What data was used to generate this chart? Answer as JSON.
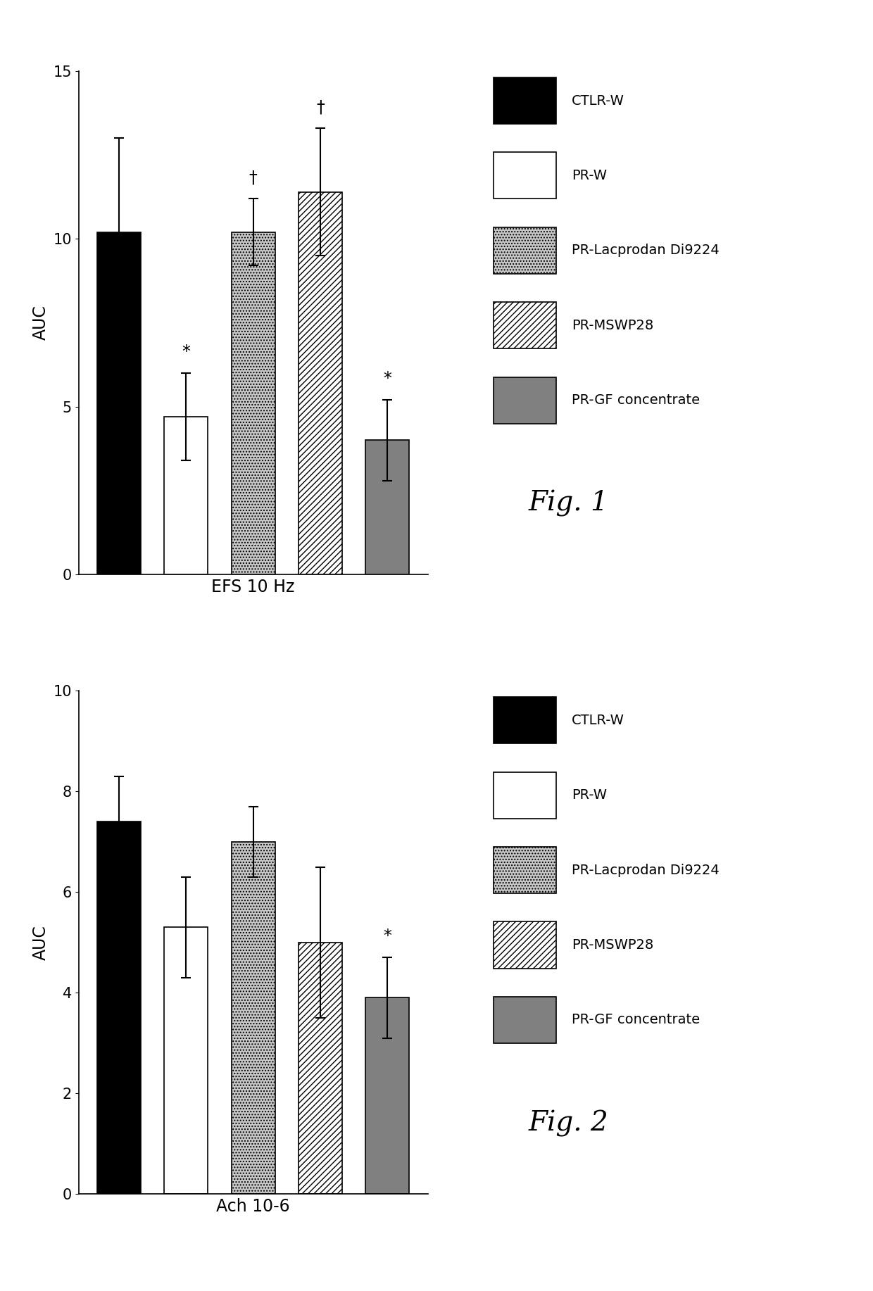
{
  "fig1": {
    "xlabel": "EFS 10 Hz",
    "ylabel": "AUC",
    "ylim": [
      0,
      15
    ],
    "yticks": [
      0,
      5,
      10,
      15
    ],
    "bars": [
      {
        "label": "CTLR-W",
        "value": 10.2,
        "error": 2.8,
        "color": "#000000",
        "hatch": null,
        "annotation": null
      },
      {
        "label": "PR-W",
        "value": 4.7,
        "error": 1.3,
        "color": "#ffffff",
        "hatch": null,
        "annotation": "*"
      },
      {
        "label": "PR-Lacprodan Di9224",
        "value": 10.2,
        "error": 1.0,
        "color": "#c8c8c8",
        "hatch": "....",
        "annotation": "†"
      },
      {
        "label": "PR-MSWP28",
        "value": 11.4,
        "error": 1.9,
        "color": "#ffffff",
        "hatch": "////",
        "annotation": "†"
      },
      {
        "label": "PR-GF concentrate",
        "value": 4.0,
        "error": 1.2,
        "color": "#808080",
        "hatch": null,
        "annotation": "*"
      }
    ]
  },
  "fig2": {
    "xlabel": "Ach 10-6",
    "ylabel": "AUC",
    "ylim": [
      0,
      10
    ],
    "yticks": [
      0,
      2,
      4,
      6,
      8,
      10
    ],
    "bars": [
      {
        "label": "CTLR-W",
        "value": 7.4,
        "error": 0.9,
        "color": "#000000",
        "hatch": null,
        "annotation": null
      },
      {
        "label": "PR-W",
        "value": 5.3,
        "error": 1.0,
        "color": "#ffffff",
        "hatch": null,
        "annotation": null
      },
      {
        "label": "PR-Lacprodan Di9224",
        "value": 7.0,
        "error": 0.7,
        "color": "#c8c8c8",
        "hatch": "....",
        "annotation": null
      },
      {
        "label": "PR-MSWP28",
        "value": 5.0,
        "error": 1.5,
        "color": "#ffffff",
        "hatch": "////",
        "annotation": null
      },
      {
        "label": "PR-GF concentrate",
        "value": 3.9,
        "error": 0.8,
        "color": "#808080",
        "hatch": null,
        "annotation": "*"
      }
    ]
  },
  "legend_labels": [
    "CTLR-W",
    "PR-W",
    "PR-Lacprodan Di9224",
    "PR-MSWP28",
    "PR-GF concentrate"
  ],
  "legend_colors": [
    "#000000",
    "#ffffff",
    "#c8c8c8",
    "#ffffff",
    "#808080"
  ],
  "legend_hatches": [
    null,
    null,
    "....",
    "////",
    null
  ],
  "bar_width": 0.65,
  "fig1_label": "Fig. 1",
  "fig2_label": "Fig. 2"
}
